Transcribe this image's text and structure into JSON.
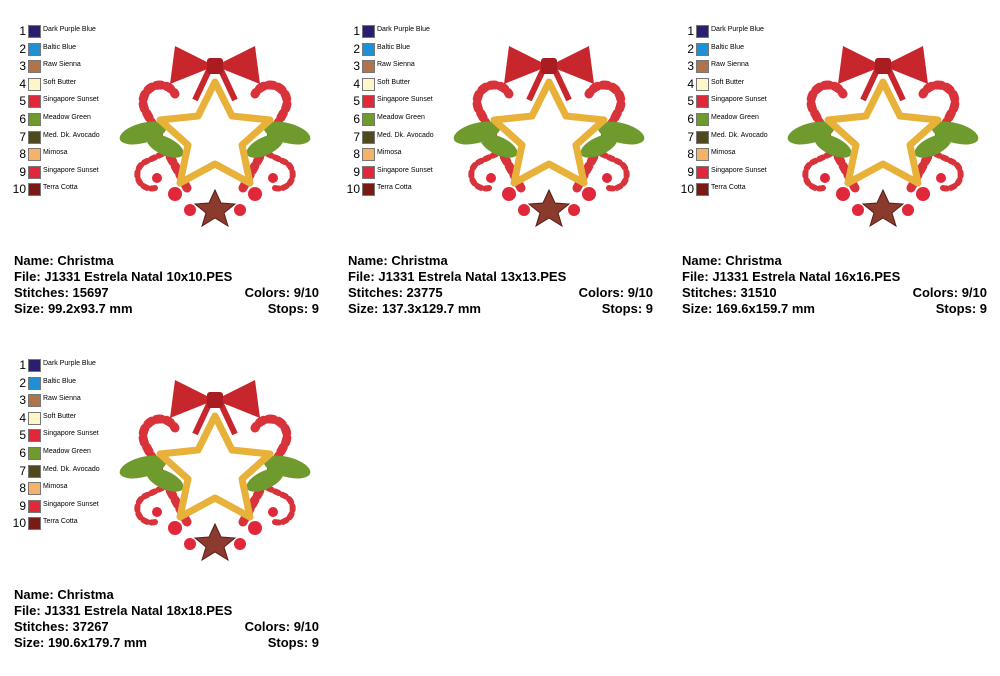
{
  "panels": [
    {
      "threads": [
        {
          "number": 1,
          "name": "Dark Purple Blue",
          "color": "#2a1f6e"
        },
        {
          "number": 2,
          "name": "Baltic Blue",
          "color": "#1f8fd6"
        },
        {
          "number": 3,
          "name": "Raw Sienna",
          "color": "#b0744a"
        },
        {
          "number": 4,
          "name": "Soft Butter",
          "color": "#fdf6c8"
        },
        {
          "number": 5,
          "name": "Singapore Sunset",
          "color": "#e0283a"
        },
        {
          "number": 6,
          "name": "Meadow Green",
          "color": "#6f9a2e"
        },
        {
          "number": 7,
          "name": "Med. Dk. Avocado",
          "color": "#4e4a1e"
        },
        {
          "number": 8,
          "name": "Mimosa",
          "color": "#f5b36a"
        },
        {
          "number": 9,
          "name": "Singapore Sunset",
          "color": "#e0283a"
        },
        {
          "number": 10,
          "name": "Terra Cotta",
          "color": "#7a1a14"
        }
      ],
      "name": "Name: Christma",
      "file": "File: J1331 Estrela Natal 10x10.PES",
      "stitches": "Stitches: 15697",
      "colors": "Colors: 9/10",
      "size": "Size: 99.2x93.7 mm",
      "stops": "Stops: 9"
    },
    {
      "threads": [
        {
          "number": 1,
          "name": "Dark Purple Blue",
          "color": "#2a1f6e"
        },
        {
          "number": 2,
          "name": "Baltic Blue",
          "color": "#1f8fd6"
        },
        {
          "number": 3,
          "name": "Raw Sienna",
          "color": "#b0744a"
        },
        {
          "number": 4,
          "name": "Soft Butter",
          "color": "#fdf6c8"
        },
        {
          "number": 5,
          "name": "Singapore Sunset",
          "color": "#e0283a"
        },
        {
          "number": 6,
          "name": "Meadow Green",
          "color": "#6f9a2e"
        },
        {
          "number": 7,
          "name": "Med. Dk. Avocado",
          "color": "#4e4a1e"
        },
        {
          "number": 8,
          "name": "Mimosa",
          "color": "#f5b36a"
        },
        {
          "number": 9,
          "name": "Singapore Sunset",
          "color": "#e0283a"
        },
        {
          "number": 10,
          "name": "Terra Cotta",
          "color": "#7a1a14"
        }
      ],
      "name": "Name: Christma",
      "file": "File: J1331 Estrela Natal 13x13.PES",
      "stitches": "Stitches: 23775",
      "colors": "Colors: 9/10",
      "size": "Size: 137.3x129.7 mm",
      "stops": "Stops: 9"
    },
    {
      "threads": [
        {
          "number": 1,
          "name": "Dark Purple Blue",
          "color": "#2a1f6e"
        },
        {
          "number": 2,
          "name": "Baltic Blue",
          "color": "#1f8fd6"
        },
        {
          "number": 3,
          "name": "Raw Sienna",
          "color": "#b0744a"
        },
        {
          "number": 4,
          "name": "Soft Butter",
          "color": "#fdf6c8"
        },
        {
          "number": 5,
          "name": "Singapore Sunset",
          "color": "#e0283a"
        },
        {
          "number": 6,
          "name": "Meadow Green",
          "color": "#6f9a2e"
        },
        {
          "number": 7,
          "name": "Med. Dk. Avocado",
          "color": "#4e4a1e"
        },
        {
          "number": 8,
          "name": "Mimosa",
          "color": "#f5b36a"
        },
        {
          "number": 9,
          "name": "Singapore Sunset",
          "color": "#e0283a"
        },
        {
          "number": 10,
          "name": "Terra Cotta",
          "color": "#7a1a14"
        }
      ],
      "name": "Name: Christma",
      "file": "File: J1331 Estrela Natal 16x16.PES",
      "stitches": "Stitches: 31510",
      "colors": "Colors: 9/10",
      "size": "Size: 169.6x159.7 mm",
      "stops": "Stops: 9"
    },
    {
      "threads": [
        {
          "number": 1,
          "name": "Dark Purple Blue",
          "color": "#2a1f6e"
        },
        {
          "number": 2,
          "name": "Baltic Blue",
          "color": "#1f8fd6"
        },
        {
          "number": 3,
          "name": "Raw Sienna",
          "color": "#b0744a"
        },
        {
          "number": 4,
          "name": "Soft Butter",
          "color": "#fdf6c8"
        },
        {
          "number": 5,
          "name": "Singapore Sunset",
          "color": "#e0283a"
        },
        {
          "number": 6,
          "name": "Meadow Green",
          "color": "#6f9a2e"
        },
        {
          "number": 7,
          "name": "Med. Dk. Avocado",
          "color": "#4e4a1e"
        },
        {
          "number": 8,
          "name": "Mimosa",
          "color": "#f5b36a"
        },
        {
          "number": 9,
          "name": "Singapore Sunset",
          "color": "#e0283a"
        },
        {
          "number": 10,
          "name": "Terra Cotta",
          "color": "#7a1a14"
        }
      ],
      "name": "Name: Christma",
      "file": "File: J1331 Estrela Natal 18x18.PES",
      "stitches": "Stitches: 37267",
      "colors": "Colors: 9/10",
      "size": "Size: 190.6x179.7 mm",
      "stops": "Stops: 9"
    }
  ]
}
